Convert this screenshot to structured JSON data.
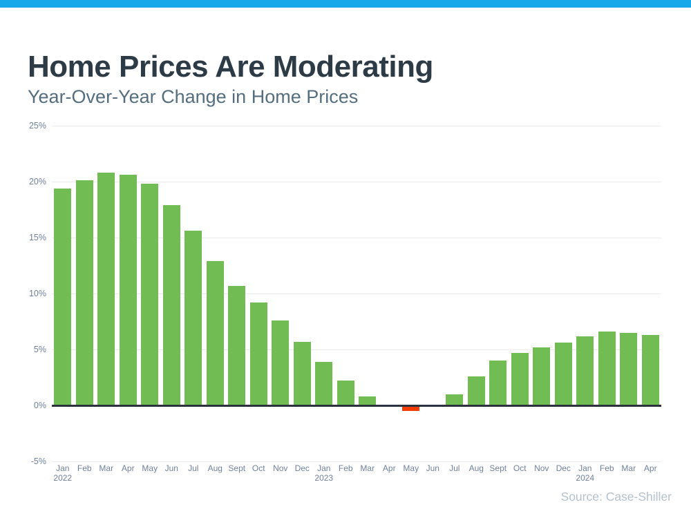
{
  "page": {
    "title": "Home Prices Are Moderating",
    "subtitle": "Year-Over-Year Change in Home Prices",
    "source": "Source: Case-Shiller",
    "accent_color": "#18a9ea"
  },
  "chart_data": {
    "type": "bar",
    "title": "Home Prices Are Moderating",
    "subtitle": "Year-Over-Year Change in Home Prices",
    "source": "Source: Case-Shiller",
    "unit": "%",
    "ylim": [
      -5,
      25
    ],
    "grid": true,
    "x": [
      "Jan 2022",
      "Feb 2022",
      "Mar 2022",
      "Apr 2022",
      "May 2022",
      "Jun 2022",
      "Jul 2022",
      "Aug 2022",
      "Sept 2022",
      "Oct 2022",
      "Nov 2022",
      "Dec 2022",
      "Jan 2023",
      "Feb 2023",
      "Mar 2023",
      "Apr 2023",
      "May 2023",
      "Jun 2023",
      "Jul 2023",
      "Aug 2023",
      "Sept 2023",
      "Oct 2023",
      "Nov 2023",
      "Dec 2023",
      "Jan 2024",
      "Feb 2024",
      "Mar 2024",
      "Apr 2024"
    ],
    "values": [
      19.4,
      20.1,
      20.8,
      20.6,
      19.8,
      17.9,
      15.6,
      12.9,
      10.7,
      9.2,
      7.6,
      5.7,
      3.9,
      2.2,
      0.8,
      0.0,
      -0.4,
      0.0,
      1.0,
      2.6,
      4.0,
      4.7,
      5.2,
      5.6,
      6.2,
      6.6,
      6.5,
      6.3
    ],
    "x_labels": [
      {
        "month": "Jan",
        "year": "2022"
      },
      {
        "month": "Feb"
      },
      {
        "month": "Mar"
      },
      {
        "month": "Apr"
      },
      {
        "month": "May"
      },
      {
        "month": "Jun"
      },
      {
        "month": "Jul"
      },
      {
        "month": "Aug"
      },
      {
        "month": "Sept"
      },
      {
        "month": "Oct"
      },
      {
        "month": "Nov"
      },
      {
        "month": "Dec"
      },
      {
        "month": "Jan",
        "year": "2023"
      },
      {
        "month": "Feb"
      },
      {
        "month": "Mar"
      },
      {
        "month": "Apr"
      },
      {
        "month": "May"
      },
      {
        "month": "Jun"
      },
      {
        "month": "Jul"
      },
      {
        "month": "Aug"
      },
      {
        "month": "Sept"
      },
      {
        "month": "Oct"
      },
      {
        "month": "Nov"
      },
      {
        "month": "Dec"
      },
      {
        "month": "Jan",
        "year": "2024"
      },
      {
        "month": "Feb"
      },
      {
        "month": "Mar"
      },
      {
        "month": "Apr"
      }
    ],
    "y_ticks": [
      {
        "value": 25,
        "label": "25%"
      },
      {
        "value": 20,
        "label": "20%"
      },
      {
        "value": 15,
        "label": "15%"
      },
      {
        "value": 10,
        "label": "10%"
      },
      {
        "value": 5,
        "label": "5%"
      },
      {
        "value": 0,
        "label": "0%"
      },
      {
        "value": -5,
        "label": "-5%"
      }
    ],
    "bar_color_positive": "#71bd53",
    "bar_color_negative": "#f23d05",
    "axis_color": "#2a333d",
    "gridline_color": "#e9eaec",
    "legend": null
  }
}
